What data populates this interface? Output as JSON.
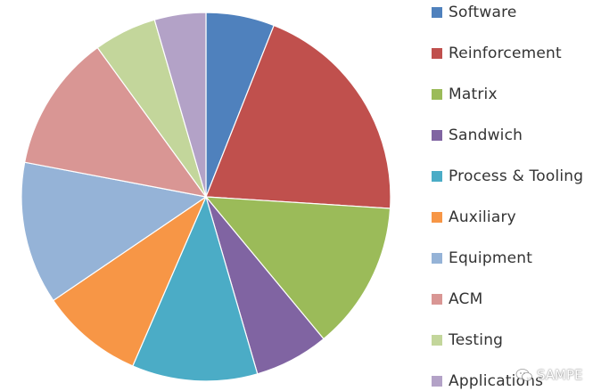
{
  "chart_data": {
    "type": "pie",
    "title": "",
    "start_angle_deg": 0,
    "direction": "clockwise",
    "legend_position": "right",
    "slices": [
      {
        "label": "Software",
        "value": 6.0,
        "color": "#4F81BD"
      },
      {
        "label": "Reinforcement",
        "value": 20.0,
        "color": "#C0504D"
      },
      {
        "label": "Matrix",
        "value": 13.0,
        "color": "#9BBB59"
      },
      {
        "label": "Sandwich",
        "value": 6.5,
        "color": "#8064A2"
      },
      {
        "label": "Process & Tooling",
        "value": 11.0,
        "color": "#4BACC6"
      },
      {
        "label": "Auxiliary",
        "value": 9.0,
        "color": "#F79646"
      },
      {
        "label": "Equipment",
        "value": 12.5,
        "color": "#95B3D7"
      },
      {
        "label": "ACM",
        "value": 12.0,
        "color": "#D99694"
      },
      {
        "label": "Testing",
        "value": 5.5,
        "color": "#C3D69B"
      },
      {
        "label": "Applications",
        "value": 4.5,
        "color": "#B3A2C7"
      }
    ]
  },
  "watermark": {
    "text": "SAMPE",
    "icon": "wechat-icon"
  }
}
